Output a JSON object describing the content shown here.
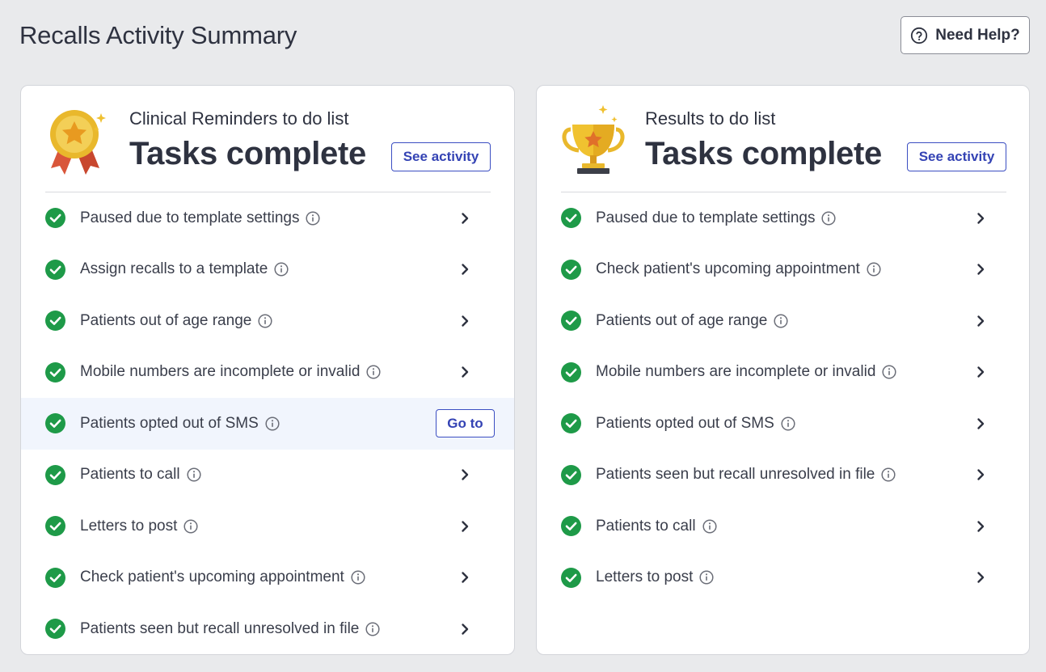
{
  "page": {
    "title": "Recalls Activity Summary"
  },
  "help": {
    "label": "Need Help?"
  },
  "colors": {
    "check_green": "#1e9a48",
    "link_blue": "#3443b4",
    "hover_row": "#f1f5fd"
  },
  "left_card": {
    "title": "Clinical Reminders to do list",
    "status": "Tasks complete",
    "see_activity": "See activity",
    "icon": "award-medal-icon",
    "goto_label": "Go to",
    "items": [
      {
        "label": "Paused due to template settings"
      },
      {
        "label": "Assign recalls to a template"
      },
      {
        "label": "Patients out of age range"
      },
      {
        "label": "Mobile numbers are incomplete or invalid"
      },
      {
        "label": "Patients opted out of SMS"
      },
      {
        "label": "Patients to call"
      },
      {
        "label": "Letters to post"
      },
      {
        "label": "Check patient's upcoming appointment"
      },
      {
        "label": "Patients seen but recall unresolved in file"
      }
    ]
  },
  "right_card": {
    "title": "Results to do list",
    "status": "Tasks complete",
    "see_activity": "See activity",
    "icon": "trophy-icon",
    "items": [
      {
        "label": "Paused due to template settings"
      },
      {
        "label": "Check patient's upcoming appointment"
      },
      {
        "label": "Patients out of age range"
      },
      {
        "label": "Mobile numbers are incomplete or invalid"
      },
      {
        "label": "Patients opted out of SMS"
      },
      {
        "label": "Patients seen but recall unresolved in file"
      },
      {
        "label": "Patients to call"
      },
      {
        "label": "Letters to post"
      }
    ]
  }
}
